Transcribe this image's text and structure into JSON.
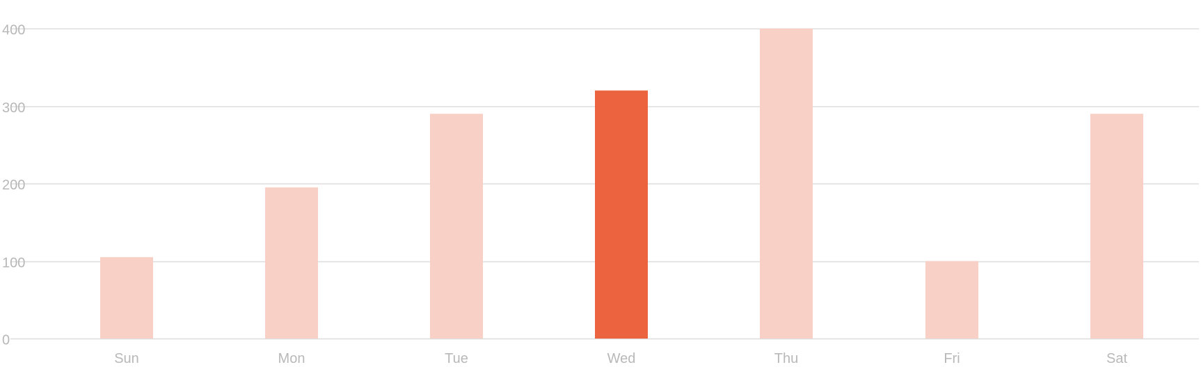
{
  "chart_data": {
    "type": "bar",
    "categories": [
      "Sun",
      "Mon",
      "Tue",
      "Wed",
      "Thu",
      "Fri",
      "Sat"
    ],
    "values": [
      105,
      195,
      290,
      320,
      400,
      100,
      290
    ],
    "highlighted_category": "Wed",
    "title": "",
    "xlabel": "",
    "ylabel": "",
    "ylim": [
      0,
      400
    ],
    "yticks": [
      0,
      100,
      200,
      300,
      400
    ],
    "grid": true,
    "legend": "none",
    "colors": {
      "bar": "#f8d0c6",
      "bar_highlight": "#ec6340",
      "grid": "#dddddd",
      "tick_text": "#b8b8b8"
    }
  }
}
